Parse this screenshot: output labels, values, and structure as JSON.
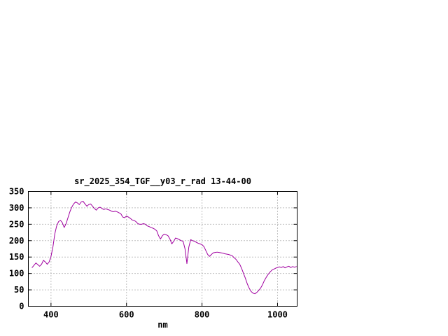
{
  "page": {
    "background": "#ffffff"
  },
  "chart_data": {
    "type": "line",
    "title": "sr_2025_354_TGF__y03_r_rad 13-44-00",
    "xlabel": "nm",
    "ylabel": "",
    "xlim": [
      340,
      1052
    ],
    "ylim": [
      0,
      350
    ],
    "xticks": [
      400,
      600,
      800,
      1000
    ],
    "yticks": [
      0,
      50,
      100,
      150,
      200,
      250,
      300,
      350
    ],
    "grid": true,
    "grid_style": "dotted",
    "line_color": "#a000a0",
    "axis_color": "#000000",
    "legend": "none",
    "points": [
      [
        350,
        118
      ],
      [
        355,
        125
      ],
      [
        360,
        132
      ],
      [
        365,
        127
      ],
      [
        370,
        122
      ],
      [
        375,
        128
      ],
      [
        380,
        140
      ],
      [
        385,
        135
      ],
      [
        390,
        128
      ],
      [
        395,
        135
      ],
      [
        400,
        152
      ],
      [
        405,
        180
      ],
      [
        410,
        220
      ],
      [
        415,
        245
      ],
      [
        420,
        258
      ],
      [
        425,
        262
      ],
      [
        430,
        255
      ],
      [
        435,
        240
      ],
      [
        440,
        252
      ],
      [
        445,
        270
      ],
      [
        450,
        288
      ],
      [
        455,
        302
      ],
      [
        460,
        312
      ],
      [
        465,
        318
      ],
      [
        470,
        315
      ],
      [
        475,
        310
      ],
      [
        480,
        318
      ],
      [
        485,
        320
      ],
      [
        490,
        312
      ],
      [
        495,
        305
      ],
      [
        500,
        310
      ],
      [
        505,
        312
      ],
      [
        510,
        305
      ],
      [
        515,
        298
      ],
      [
        520,
        293
      ],
      [
        525,
        300
      ],
      [
        530,
        302
      ],
      [
        535,
        298
      ],
      [
        540,
        295
      ],
      [
        545,
        297
      ],
      [
        550,
        295
      ],
      [
        555,
        293
      ],
      [
        560,
        290
      ],
      [
        565,
        288
      ],
      [
        570,
        290
      ],
      [
        575,
        288
      ],
      [
        580,
        285
      ],
      [
        585,
        282
      ],
      [
        590,
        272
      ],
      [
        595,
        270
      ],
      [
        600,
        275
      ],
      [
        605,
        272
      ],
      [
        610,
        268
      ],
      [
        615,
        263
      ],
      [
        620,
        262
      ],
      [
        625,
        258
      ],
      [
        630,
        252
      ],
      [
        635,
        250
      ],
      [
        640,
        250
      ],
      [
        645,
        252
      ],
      [
        650,
        250
      ],
      [
        655,
        245
      ],
      [
        660,
        243
      ],
      [
        665,
        240
      ],
      [
        670,
        238
      ],
      [
        675,
        235
      ],
      [
        680,
        230
      ],
      [
        685,
        215
      ],
      [
        690,
        205
      ],
      [
        695,
        215
      ],
      [
        700,
        220
      ],
      [
        705,
        218
      ],
      [
        710,
        215
      ],
      [
        715,
        205
      ],
      [
        720,
        190
      ],
      [
        725,
        198
      ],
      [
        730,
        208
      ],
      [
        735,
        206
      ],
      [
        740,
        203
      ],
      [
        745,
        200
      ],
      [
        750,
        198
      ],
      [
        755,
        175
      ],
      [
        760,
        130
      ],
      [
        765,
        180
      ],
      [
        770,
        203
      ],
      [
        775,
        200
      ],
      [
        780,
        198
      ],
      [
        785,
        195
      ],
      [
        790,
        192
      ],
      [
        795,
        190
      ],
      [
        800,
        188
      ],
      [
        805,
        182
      ],
      [
        810,
        170
      ],
      [
        815,
        158
      ],
      [
        820,
        152
      ],
      [
        825,
        158
      ],
      [
        830,
        163
      ],
      [
        835,
        164
      ],
      [
        840,
        165
      ],
      [
        845,
        164
      ],
      [
        850,
        163
      ],
      [
        855,
        162
      ],
      [
        860,
        160
      ],
      [
        865,
        159
      ],
      [
        870,
        158
      ],
      [
        875,
        156
      ],
      [
        880,
        154
      ],
      [
        885,
        148
      ],
      [
        890,
        143
      ],
      [
        895,
        135
      ],
      [
        900,
        128
      ],
      [
        905,
        115
      ],
      [
        910,
        100
      ],
      [
        915,
        85
      ],
      [
        920,
        68
      ],
      [
        925,
        55
      ],
      [
        930,
        45
      ],
      [
        935,
        40
      ],
      [
        940,
        38
      ],
      [
        945,
        42
      ],
      [
        950,
        48
      ],
      [
        955,
        55
      ],
      [
        960,
        65
      ],
      [
        965,
        78
      ],
      [
        970,
        88
      ],
      [
        975,
        97
      ],
      [
        980,
        104
      ],
      [
        985,
        110
      ],
      [
        990,
        113
      ],
      [
        995,
        116
      ],
      [
        1000,
        118
      ],
      [
        1005,
        120
      ],
      [
        1010,
        118
      ],
      [
        1015,
        121
      ],
      [
        1020,
        117
      ],
      [
        1025,
        120
      ],
      [
        1030,
        122
      ],
      [
        1035,
        118
      ],
      [
        1040,
        121
      ],
      [
        1045,
        119
      ],
      [
        1050,
        121
      ]
    ]
  }
}
